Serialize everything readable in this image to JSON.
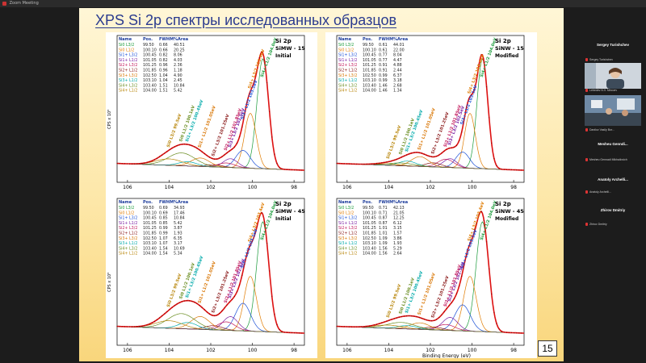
{
  "window": {
    "title": "Zoom Meeting"
  },
  "slide": {
    "title": "XPS Si 2p спектры исследованных образцов",
    "page_number": "15"
  },
  "panels": [
    {
      "id": "tl",
      "header": [
        "Name",
        "Pos.",
        "FWHM",
        "%Area"
      ],
      "rows": [
        [
          "Si0 L3/2",
          "99.50",
          "0.66",
          "40.51"
        ],
        [
          "Si0 L1/2",
          "100.10",
          "0.66",
          "20.25"
        ],
        [
          "Si1+ L3/2",
          "100.45",
          "0.82",
          "8.06"
        ],
        [
          "Si1+ L1/2",
          "101.05",
          "0.82",
          "4.03"
        ],
        [
          "Si2+ L3/2",
          "101.25",
          "0.96",
          "2.36"
        ],
        [
          "Si2+ L1/2",
          "101.85",
          "0.96",
          "1.18"
        ],
        [
          "Si3+ L3/2",
          "102.50",
          "1.04",
          "4.90"
        ],
        [
          "Si3+ L1/2",
          "103.10",
          "1.04",
          "2.45"
        ],
        [
          "Si4+ L3/2",
          "103.40",
          "1.51",
          "10.84"
        ],
        [
          "Si4+ L1/2",
          "104.00",
          "1.51",
          "5.42"
        ]
      ],
      "label_line1": "Si 2p",
      "label_line2": "SiMW - 15",
      "label_line3": "Initial",
      "ylabel": "CPS x 10³",
      "xticks": [
        "106",
        "104",
        "102",
        "100",
        "98"
      ],
      "peak_labels": [
        "Si4+ L1/2 104.0eV",
        "Si4+ L3/2 103.4eV",
        "Si3+ L1/2 103.1eV",
        "Si3+ L3/2 102.5eV",
        "Si2+ L1/2 101.85eV",
        "Si2+ L3/2 101.25eV",
        "Si1+ L1/2 101.05eV",
        "Si1+ L3/2 100.45eV",
        "Si0 L1/2 100.1eV",
        "Si0 L3/2 99.5eV"
      ]
    },
    {
      "id": "tr",
      "header": [
        "Name",
        "Pos.",
        "FWHM",
        "%Area"
      ],
      "rows": [
        [
          "Si0 L3/2",
          "99.50",
          "0.61",
          "44.01"
        ],
        [
          "Si0 L1/2",
          "100.10",
          "0.61",
          "22.00"
        ],
        [
          "Si1+ L3/2",
          "100.45",
          "0.77",
          "8.04"
        ],
        [
          "Si1+ L1/2",
          "101.05",
          "0.77",
          "4.47"
        ],
        [
          "Si2+ L3/2",
          "101.25",
          "0.91",
          "4.88"
        ],
        [
          "Si2+ L1/2",
          "101.85",
          "0.91",
          "2.44"
        ],
        [
          "Si3+ L3/2",
          "102.50",
          "0.99",
          "6.37"
        ],
        [
          "Si3+ L1/2",
          "103.10",
          "0.99",
          "3.18"
        ],
        [
          "Si4+ L3/2",
          "103.40",
          "1.46",
          "2.68"
        ],
        [
          "Si4+ L1/2",
          "104.00",
          "1.46",
          "1.34"
        ]
      ],
      "label_line1": "Si 2p",
      "label_line2": "SiNW - 15",
      "label_line3": "Modified",
      "ylabel": "",
      "xticks": [
        "106",
        "104",
        "102",
        "100",
        "98"
      ],
      "peak_labels": [
        "Si4+ L1/2 104.0eV",
        "Si4+ L3/2 103.4eV",
        "Si3+ L1/2 103.1eV",
        "Si3+ L3/2 102.5eV",
        "Si2+ L1/2 101.85eV",
        "Si2+ L3/2 101.25eV",
        "Si1+ L1/2 101.05eV",
        "Si1+ L3/2 100.45eV",
        "Si0 L1/2 100.1eV",
        "Si0 L3/2 99.5eV"
      ]
    },
    {
      "id": "bl",
      "header": [
        "Name",
        "Pos.",
        "FWHM",
        "%Area"
      ],
      "rows": [
        [
          "Si0 L3/2",
          "99.50",
          "0.69",
          "34.93"
        ],
        [
          "Si0 L1/2",
          "100.10",
          "0.69",
          "17.46"
        ],
        [
          "Si1+ L3/2",
          "100.45",
          "0.85",
          "10.84"
        ],
        [
          "Si1+ L1/2",
          "101.05",
          "0.85",
          "5.42"
        ],
        [
          "Si2+ L3/2",
          "101.25",
          "0.99",
          "3.87"
        ],
        [
          "Si2+ L1/2",
          "101.85",
          "0.99",
          "1.93"
        ],
        [
          "Si3+ L3/2",
          "102.50",
          "1.07",
          "6.35"
        ],
        [
          "Si3+ L1/2",
          "103.10",
          "1.07",
          "3.17"
        ],
        [
          "Si4+ L3/2",
          "103.40",
          "1.54",
          "10.69"
        ],
        [
          "Si4+ L1/2",
          "104.00",
          "1.54",
          "5.34"
        ]
      ],
      "label_line1": "Si 2p",
      "label_line2": "SiMW - 45",
      "label_line3": "Initial",
      "ylabel": "CPS x 10³",
      "xticks": [
        "106",
        "104",
        "102",
        "100",
        "98"
      ],
      "peak_labels": [
        "Si4+ L1/2 104.0eV",
        "Si4+ L3/2 103.4eV",
        "Si3+ L1/2 103.1eV",
        "Si3+ L3/2 102.5eV",
        "Si2+ L1/2 101.85eV",
        "Si2+ L3/2 101.25eV",
        "Si1+ L1/2 101.05eV",
        "Si1+ L3/2 100.45eV",
        "Si0 L1/2 100.1eV",
        "Si0 L3/2 99.5eV"
      ]
    },
    {
      "id": "br",
      "header": [
        "Name",
        "Pos.",
        "FWHM",
        "%Area"
      ],
      "rows": [
        [
          "Si0 L3/2",
          "99.50",
          "0.71",
          "42.13"
        ],
        [
          "Si0 L1/2",
          "100.10",
          "0.71",
          "21.05"
        ],
        [
          "Si1+ L3/2",
          "100.45",
          "0.87",
          "12.25"
        ],
        [
          "Si1+ L1/2",
          "101.05",
          "0.87",
          "6.12"
        ],
        [
          "Si2+ L3/2",
          "101.25",
          "1.01",
          "3.15"
        ],
        [
          "Si2+ L1/2",
          "101.85",
          "1.01",
          "1.57"
        ],
        [
          "Si3+ L3/2",
          "102.50",
          "1.09",
          "3.86"
        ],
        [
          "Si3+ L1/2",
          "103.10",
          "1.09",
          "1.93"
        ],
        [
          "Si4+ L3/2",
          "103.40",
          "1.56",
          "5.29"
        ],
        [
          "Si4+ L1/2",
          "104.00",
          "1.56",
          "2.64"
        ]
      ],
      "label_line1": "Si 2p",
      "label_line2": "SiNW - 45",
      "label_line3": "Modified",
      "ylabel": "",
      "xticks": [
        "106",
        "104",
        "102",
        "100",
        "98"
      ],
      "peak_labels": [
        "Si4+ L1/2 104.0eV",
        "Si4+ L3/2 103.4eV",
        "Si3+ L1/2 103.1eV",
        "Si3+ L3/2 102.5eV",
        "Si2+ L1/2 101.85eV",
        "Si2+ L3/2 101.25eV",
        "Si1+ L1/2 101.05eV",
        "Si1+ L3/2 100.45eV",
        "Si0 L1/2 100.1eV",
        "Si0 L3/2 99.5eV"
      ],
      "xlabel": "Binding Energy (eV)"
    }
  ],
  "component_colors": [
    "#1a9a3a",
    "#e07b00",
    "#1a4fd6",
    "#7a1fa2",
    "#c2185b",
    "#8b1a1a",
    "#d97706",
    "#0aa",
    "#6b8e23",
    "#b8860b"
  ],
  "participants": [
    {
      "name": "Sergey Turishchev",
      "sub": "Sergey Turishchev"
    },
    {
      "name": "",
      "sub": "Lebedev N.V. Mirzoev"
    },
    {
      "name": "",
      "sub": "Danilov Vasily Bor..."
    },
    {
      "name": "Mesheu Genndi...",
      "sub": "Mesheu Gennadi Mikhailovich"
    },
    {
      "name": "Anatoly Archelli...",
      "sub": "Anatoly Archelli..."
    },
    {
      "name": "Zhirov Dmitriy",
      "sub": "Zhirov Dmitriy"
    }
  ]
}
